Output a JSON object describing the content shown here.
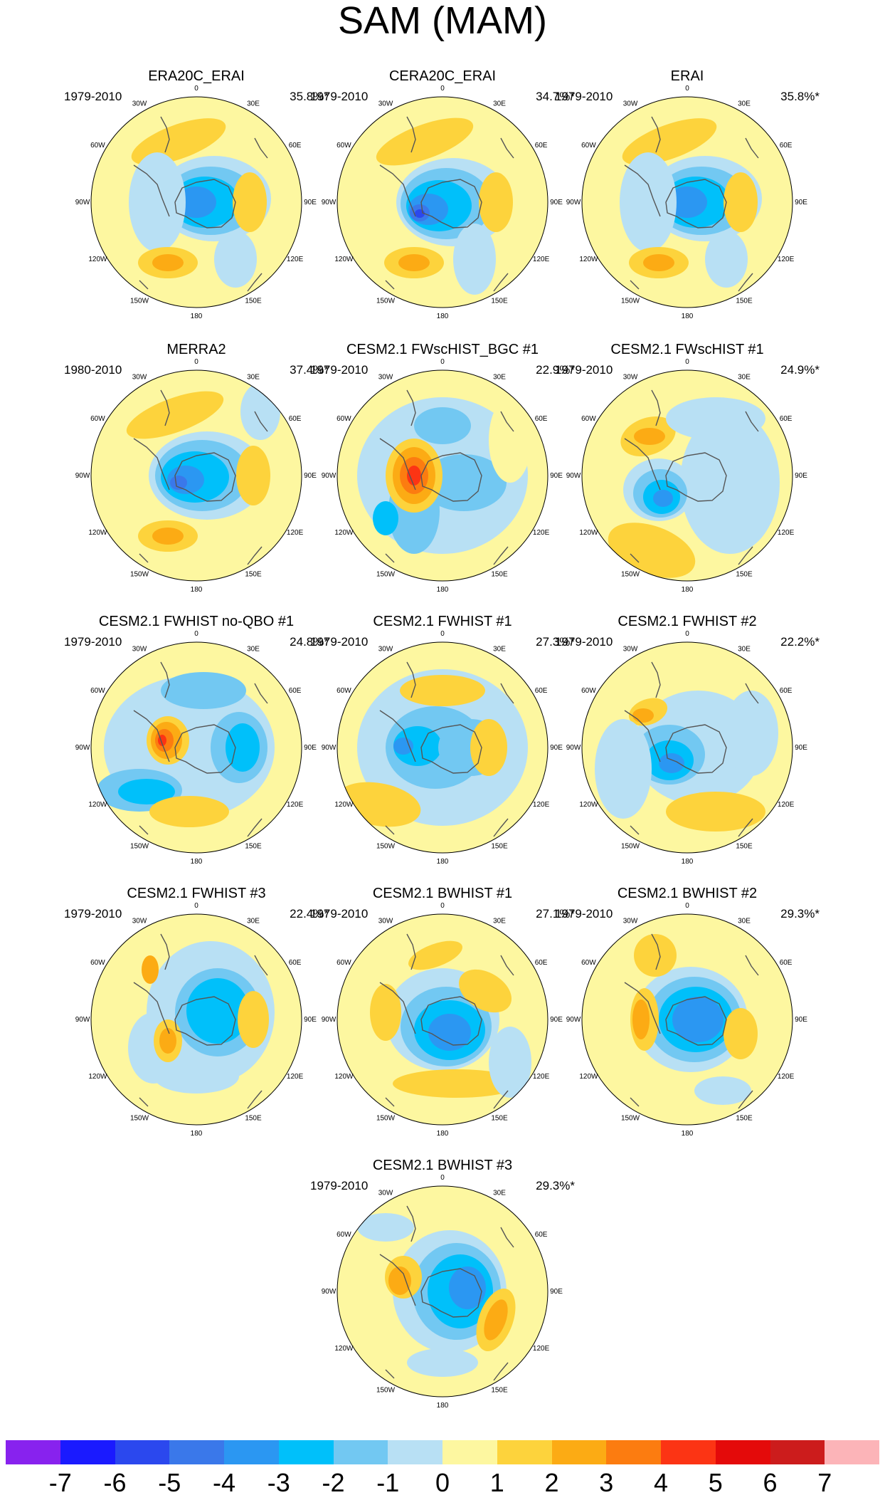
{
  "title": "SAM (MAM)",
  "panels": [
    {
      "title": "ERA20C_ERAI",
      "period": "1979-2010",
      "variance": "35.8%*"
    },
    {
      "title": "CERA20C_ERAI",
      "period": "1979-2010",
      "variance": "34.7%*"
    },
    {
      "title": "ERAI",
      "period": "1979-2010",
      "variance": "35.8%*"
    },
    {
      "title": "MERRA2",
      "period": "1980-2010",
      "variance": "37.4%*"
    },
    {
      "title": "CESM2.1 FWscHIST_BGC #1",
      "period": "1979-2010",
      "variance": "22.9%*"
    },
    {
      "title": "CESM2.1 FWscHIST #1",
      "period": "1979-2010",
      "variance": "24.9%*"
    },
    {
      "title": "CESM2.1 FWHIST no-QBO #1",
      "period": "1979-2010",
      "variance": "24.8%*"
    },
    {
      "title": "CESM2.1 FWHIST #1",
      "period": "1979-2010",
      "variance": "27.3%*"
    },
    {
      "title": "CESM2.1 FWHIST #2",
      "period": "1979-2010",
      "variance": "22.2%*"
    },
    {
      "title": "CESM2.1 FWHIST #3",
      "period": "1979-2010",
      "variance": "22.4%*"
    },
    {
      "title": "CESM2.1 BWHIST #1",
      "period": "1979-2010",
      "variance": "27.1%*"
    },
    {
      "title": "CESM2.1 BWHIST #2",
      "period": "1979-2010",
      "variance": "29.3%*"
    },
    {
      "title": "CESM2.1 BWHIST #3",
      "period": "1979-2010",
      "variance": "29.3%*"
    }
  ],
  "longitude_labels": [
    "0",
    "30E",
    "60E",
    "90E",
    "120E",
    "150E",
    "180",
    "150W",
    "120W",
    "90W",
    "60W",
    "30W"
  ],
  "colorbar": {
    "labels": [
      "-7",
      "-6",
      "-5",
      "-4",
      "-3",
      "-2",
      "-1",
      "0",
      "1",
      "2",
      "3",
      "4",
      "5",
      "6",
      "7"
    ],
    "colors": [
      "#8822ee",
      "#1a1aff",
      "#2b48ee",
      "#3a78ea",
      "#2b97f2",
      "#00c0fa",
      "#72c8f2",
      "#b8e0f4",
      "#fdf7a0",
      "#fdd33c",
      "#fcab14",
      "#fc7c10",
      "#fc3414",
      "#e40a0a",
      "#cc1c1c",
      "#fcb4b8"
    ]
  },
  "colors": {
    "neutral_fill": "#fdf7a0",
    "land_outline": "#555555"
  }
}
